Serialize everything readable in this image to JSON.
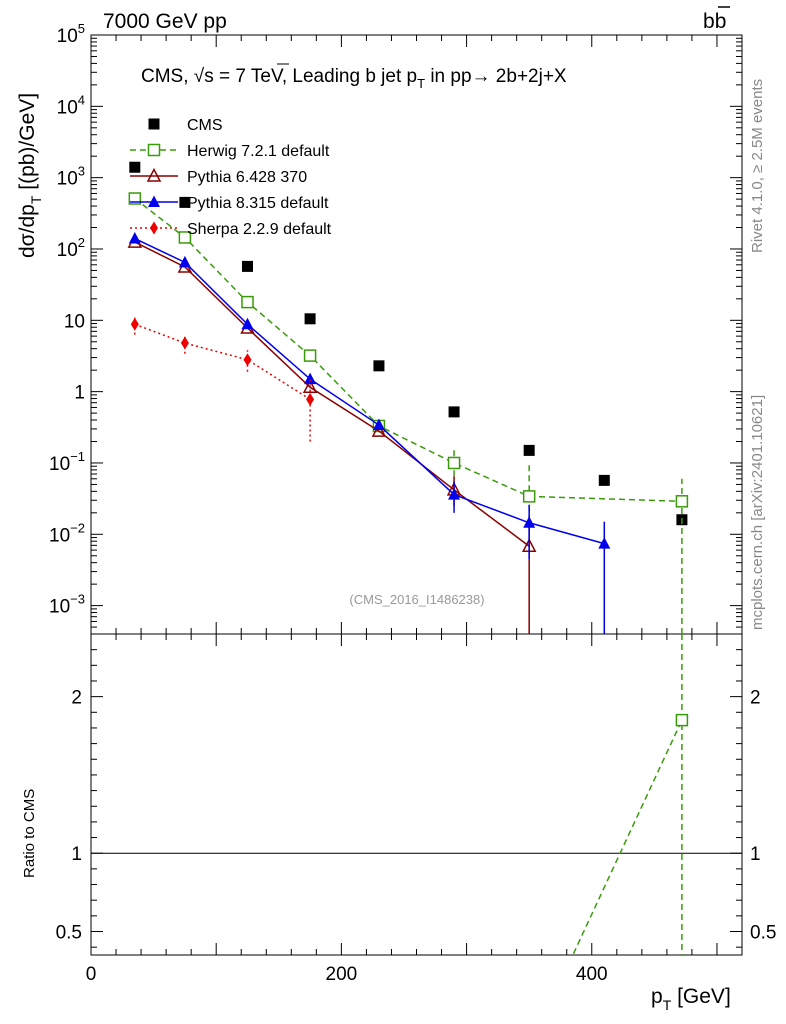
{
  "header": {
    "left": "7000 GeV pp",
    "right": "b",
    "right_bar": "b"
  },
  "side_labels": {
    "top": "Rivet 4.1.0, ≥ 2.5M events",
    "bottom": "mcplots.cern.ch [arXiv:2401.10621]"
  },
  "chart_data": {
    "type": "scatter",
    "title": {
      "prefix": "CMS, ",
      "sqrt": "√s",
      "mid": " = 7 TeV, Leading b jet p",
      "sub": "T",
      "tail": " in pp→  2b+2j+X"
    },
    "watermark": "(CMS_2016_I1486238)",
    "ylabel": {
      "main": "dσ/dp",
      "sub": "T",
      "tail": " [(pb)/GeV]"
    },
    "xlabel": {
      "main": "p",
      "sub": "T",
      "tail": " [GeV]"
    },
    "ratio_ylabel": "Ratio to CMS",
    "xlim": [
      0,
      520
    ],
    "ylim_log": [
      0.0004,
      100000
    ],
    "ratio_ylim": [
      0.35,
      2.4
    ],
    "y_ticks": [
      {
        "v": 0.001,
        "base": "10",
        "exp": "−3"
      },
      {
        "v": 0.01,
        "base": "10",
        "exp": "−2"
      },
      {
        "v": 0.1,
        "base": "10",
        "exp": "−1"
      },
      {
        "v": 1,
        "base": "1",
        "exp": ""
      },
      {
        "v": 10,
        "base": "10",
        "exp": ""
      },
      {
        "v": 100,
        "base": "10",
        "exp": "2"
      },
      {
        "v": 1000,
        "base": "10",
        "exp": "3"
      },
      {
        "v": 10000,
        "base": "10",
        "exp": "4"
      },
      {
        "v": 100000,
        "base": "10",
        "exp": "5"
      }
    ],
    "x_ticks": [
      {
        "v": 0,
        "label": "0"
      },
      {
        "v": 200,
        "label": "200"
      },
      {
        "v": 400,
        "label": "400"
      }
    ],
    "ratio_ticks": [
      {
        "v": 0.5,
        "label": "0.5"
      },
      {
        "v": 1,
        "label": "1"
      },
      {
        "v": 2,
        "label": "2"
      }
    ],
    "series": [
      {
        "name": "CMS",
        "color": "#000000",
        "marker": "square",
        "line": "none",
        "points": [
          {
            "x": 35,
            "y": 1400
          },
          {
            "x": 75,
            "y": 450
          },
          {
            "x": 125,
            "y": 57
          },
          {
            "x": 175,
            "y": 10.5
          },
          {
            "x": 230,
            "y": 2.3
          },
          {
            "x": 290,
            "y": 0.52
          },
          {
            "x": 350,
            "y": 0.15
          },
          {
            "x": 410,
            "y": 0.057
          },
          {
            "x": 472,
            "y": 0.016
          }
        ]
      },
      {
        "name": "Herwig 7.2.1 default",
        "color": "#3a9b0a",
        "marker": "open-square",
        "line": "dashed",
        "points": [
          {
            "x": 35,
            "y": 510
          },
          {
            "x": 75,
            "y": 145
          },
          {
            "x": 125,
            "y": 18
          },
          {
            "x": 175,
            "y": 3.2
          },
          {
            "x": 230,
            "y": 0.33,
            "elo": 0.27,
            "ehi": 0.4
          },
          {
            "x": 290,
            "y": 0.1,
            "elo": 0.065,
            "ehi": 0.16
          },
          {
            "x": 350,
            "y": 0.034,
            "elo": 0.008,
            "ehi": 0.1
          },
          {
            "x": 472,
            "y": 0.029,
            "elo": 0.0004,
            "ehi": 0.06
          }
        ]
      },
      {
        "name": "Pythia 6.428 370",
        "color": "#8b0000",
        "marker": "open-triangle",
        "line": "solid",
        "points": [
          {
            "x": 35,
            "y": 125
          },
          {
            "x": 75,
            "y": 56
          },
          {
            "x": 125,
            "y": 7.8
          },
          {
            "x": 175,
            "y": 1.15
          },
          {
            "x": 230,
            "y": 0.28
          },
          {
            "x": 290,
            "y": 0.042,
            "elo": 0.025,
            "ehi": 0.065
          },
          {
            "x": 350,
            "y": 0.0068,
            "elo": 0.0004,
            "ehi": 0.018
          }
        ]
      },
      {
        "name": "Pythia 8.315 default",
        "color": "#0000ee",
        "marker": "triangle",
        "line": "solid",
        "points": [
          {
            "x": 35,
            "y": 140
          },
          {
            "x": 75,
            "y": 65
          },
          {
            "x": 125,
            "y": 8.8
          },
          {
            "x": 175,
            "y": 1.5
          },
          {
            "x": 230,
            "y": 0.34
          },
          {
            "x": 290,
            "y": 0.036,
            "elo": 0.02,
            "ehi": 0.055
          },
          {
            "x": 350,
            "y": 0.0145,
            "elo": 0.0045,
            "ehi": 0.026
          },
          {
            "x": 410,
            "y": 0.0074,
            "elo": 0.0004,
            "ehi": 0.015
          }
        ]
      },
      {
        "name": "Sherpa 2.2.9 default",
        "color": "#ee0000",
        "marker": "diamond",
        "line": "dotted",
        "points": [
          {
            "x": 35,
            "y": 8.8,
            "elo": 6.3,
            "ehi": 11.5
          },
          {
            "x": 75,
            "y": 4.8,
            "elo": 3.4,
            "ehi": 6.4
          },
          {
            "x": 125,
            "y": 2.8,
            "elo": 1.9,
            "ehi": 3.8
          },
          {
            "x": 175,
            "y": 0.78,
            "elo": 0.2,
            "ehi": 1.6
          }
        ]
      }
    ],
    "ratio_series": [
      {
        "name": "Herwig 7.2.1 default",
        "color": "#3a9b0a",
        "line": "dashed",
        "points": [
          {
            "x": 382,
            "y": 0.3
          },
          {
            "x": 472,
            "y": 1.85
          }
        ],
        "marker_points": [
          {
            "x": 472,
            "y": 1.85
          }
        ],
        "vertical_x": 472
      }
    ]
  }
}
